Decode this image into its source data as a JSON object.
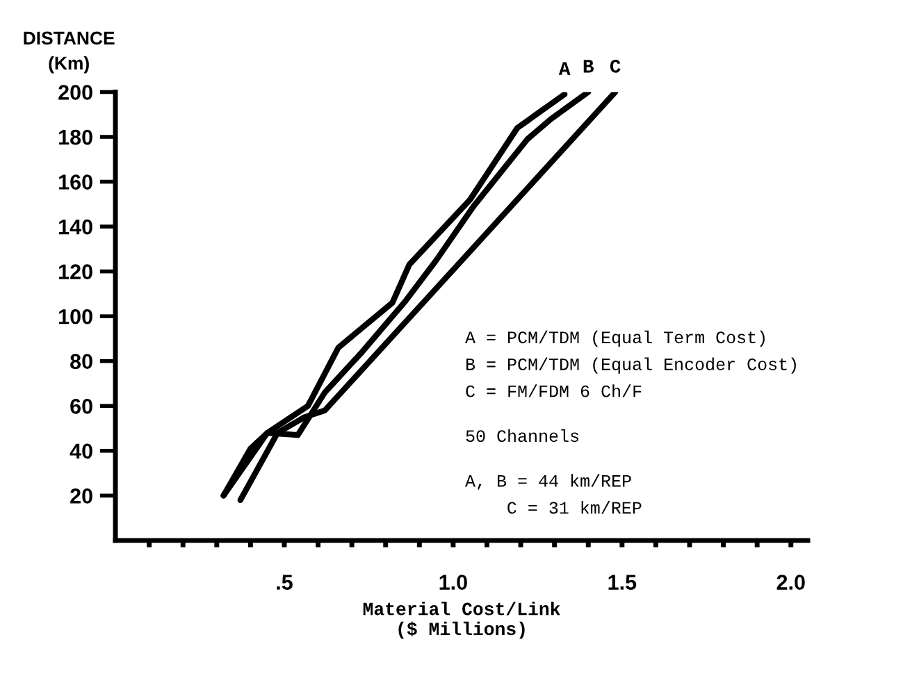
{
  "chart_data": {
    "type": "line",
    "xlabel": "Material Cost/Link\n($ Millions)",
    "ylabel": "DISTANCE\n(Km)",
    "xlim": [
      0,
      2.05
    ],
    "ylim": [
      0,
      200
    ],
    "xticks": [
      {
        "value": 0.1,
        "label": null
      },
      {
        "value": 0.2,
        "label": null
      },
      {
        "value": 0.3,
        "label": null
      },
      {
        "value": 0.4,
        "label": null
      },
      {
        "value": 0.5,
        "label": ".5"
      },
      {
        "value": 0.6,
        "label": null
      },
      {
        "value": 0.7,
        "label": null
      },
      {
        "value": 0.8,
        "label": null
      },
      {
        "value": 0.9,
        "label": null
      },
      {
        "value": 1.0,
        "label": "1.0"
      },
      {
        "value": 1.1,
        "label": null
      },
      {
        "value": 1.2,
        "label": null
      },
      {
        "value": 1.3,
        "label": null
      },
      {
        "value": 1.4,
        "label": null
      },
      {
        "value": 1.5,
        "label": "1.5"
      },
      {
        "value": 1.6,
        "label": null
      },
      {
        "value": 1.7,
        "label": null
      },
      {
        "value": 1.8,
        "label": null
      },
      {
        "value": 1.9,
        "label": null
      },
      {
        "value": 2.0,
        "label": "2.0"
      }
    ],
    "yticks": [
      20,
      40,
      60,
      80,
      100,
      120,
      140,
      160,
      180,
      200
    ],
    "grid": false,
    "legend": false,
    "marker": "none",
    "line_style": "solid",
    "series": [
      {
        "name": "A",
        "color": "#000000",
        "x": [
          0.32,
          0.4,
          0.45,
          0.57,
          0.66,
          0.82,
          0.87,
          1.05,
          1.19,
          1.33
        ],
        "values": [
          20,
          41,
          48,
          60,
          86,
          106,
          123,
          152,
          184,
          199
        ]
      },
      {
        "name": "B",
        "color": "#000000",
        "x": [
          0.32,
          0.45,
          0.54,
          0.62,
          0.73,
          0.86,
          0.95,
          1.06,
          1.22,
          1.29,
          1.4
        ],
        "values": [
          20,
          48,
          47,
          66,
          84,
          107,
          125,
          149,
          179,
          188,
          200
        ]
      },
      {
        "name": "C",
        "color": "#000000",
        "x": [
          0.37,
          0.48,
          0.56,
          0.62,
          1.02,
          1.48
        ],
        "values": [
          18,
          48,
          55,
          58,
          124,
          200
        ]
      }
    ],
    "annotations": [
      "A = PCM/TDM (Equal Term Cost)",
      "B = PCM/TDM (Equal Encoder Cost)",
      "C = FM/FDM 6 Ch/F",
      "50 Channels",
      "A, B = 44 km/REP",
      "C = 31 km/REP"
    ]
  }
}
